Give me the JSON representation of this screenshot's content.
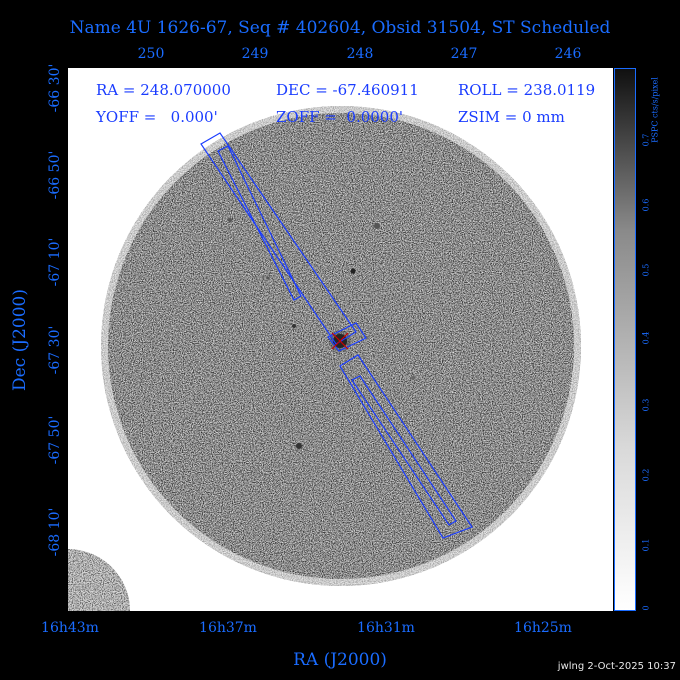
{
  "title": "Name 4U 1626-67, Seq # 402604, Obsid 31504, ST Scheduled",
  "axes": {
    "x_label": "RA (J2000)",
    "y_label": "Dec (J2000)",
    "top_ticks": [
      "250",
      "249",
      "248",
      "247",
      "246"
    ],
    "bottom_ticks": [
      "16h43m",
      "16h37m",
      "16h31m",
      "16h25m"
    ],
    "dec_ticks": [
      "-66 30'",
      "-66 50'",
      "-67 10'",
      "-67 30'",
      "-67 50'",
      "-68 10'"
    ]
  },
  "info": {
    "ra": "RA = 248.070000",
    "dec": "DEC = -67.460911",
    "roll": "ROLL = 238.0119",
    "yoff": "YOFF =   0.000'",
    "zoff": "ZOFF =  0.0000'",
    "zsim": "ZSIM = 0 mm"
  },
  "colorbar": {
    "unit": "PSPC cts/s/pixel",
    "ticks": [
      "0",
      "0.1",
      "0.2",
      "0.3",
      "0.4",
      "0.5",
      "0.6",
      "0.7"
    ]
  },
  "footer": "jwlng  2-Oct-2025 10:37",
  "colors": {
    "label": "#1a6cff",
    "overlay": "#1a3cff",
    "target": "#cc0000"
  }
}
